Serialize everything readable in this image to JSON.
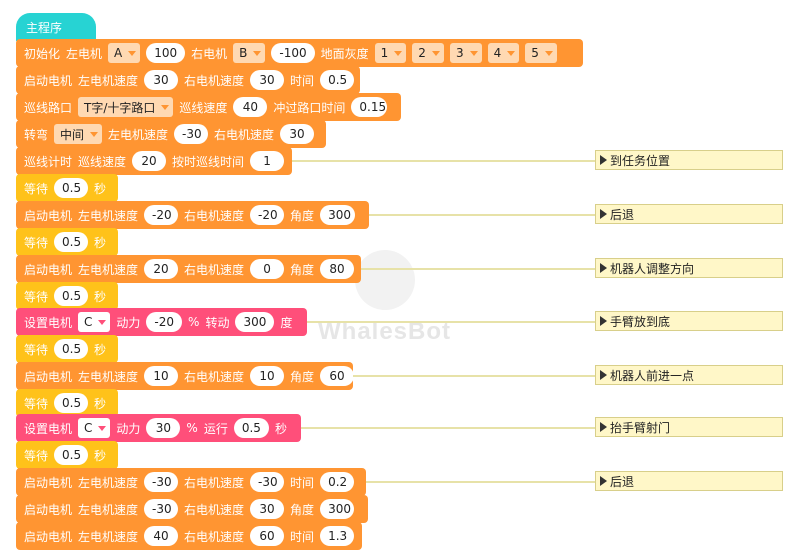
{
  "colors": {
    "hat": "#27d3d3",
    "motor": "#ff9532",
    "wait": "#ffc21a",
    "servo": "#ff4f7a",
    "comment_bg": "#fff7c8"
  },
  "watermark": "WhalesBot",
  "hat_label": "主程序",
  "init": {
    "label": "初始化",
    "left_label": "左电机",
    "left_port": "A",
    "left_value": "100",
    "right_label": "右电机",
    "right_port": "B",
    "right_value": "-100",
    "gray_label": "地面灰度",
    "sensors": [
      "1",
      "2",
      "3",
      "4",
      "5"
    ]
  },
  "start1": {
    "label": "启动电机",
    "l": "左电机速度",
    "lv": "30",
    "r": "右电机速度",
    "rv": "30",
    "t": "时间",
    "tv": "0.5"
  },
  "line_cross": {
    "label": "巡线路口",
    "type": "T字/十字路口",
    "speed_label": "巡线速度",
    "speed": "40",
    "pass_label": "冲过路口时间",
    "pass": "0.15"
  },
  "turn": {
    "label": "转弯",
    "mode": "中间",
    "l": "左电机速度",
    "lv": "-30",
    "r": "右电机速度",
    "rv": "30"
  },
  "line_timer": {
    "label": "巡线计时",
    "speed_label": "巡线速度",
    "speed": "20",
    "time_label": "按时巡线时间",
    "time": "1",
    "comment": "到任务位置"
  },
  "wait_label": "等待",
  "sec_label": "秒",
  "waits": [
    "0.5",
    "0.5",
    "0.5",
    "0.5",
    "0.5",
    "0.5"
  ],
  "move1": {
    "label": "启动电机",
    "l": "左电机速度",
    "lv": "-20",
    "r": "右电机速度",
    "rv": "-20",
    "a": "角度",
    "av": "300",
    "comment": "后退"
  },
  "move2": {
    "label": "启动电机",
    "l": "左电机速度",
    "lv": "20",
    "r": "右电机速度",
    "rv": "0",
    "a": "角度",
    "av": "80",
    "comment": "机器人调整方向"
  },
  "servo1": {
    "label": "设置电机",
    "port": "C",
    "power_label": "动力",
    "power": "-20",
    "pct": "%",
    "rot_label": "转动",
    "rot": "300",
    "unit": "度",
    "comment": "手臂放到底"
  },
  "move3": {
    "label": "启动电机",
    "l": "左电机速度",
    "lv": "10",
    "r": "右电机速度",
    "rv": "10",
    "a": "角度",
    "av": "60",
    "comment": "机器人前进一点"
  },
  "servo2": {
    "label": "设置电机",
    "port": "C",
    "power_label": "动力",
    "power": "30",
    "pct": "%",
    "run_label": "运行",
    "run": "0.5",
    "unit": "秒",
    "comment": "抬手臂射门"
  },
  "move4": {
    "label": "启动电机",
    "l": "左电机速度",
    "lv": "-30",
    "r": "右电机速度",
    "rv": "-30",
    "t": "时间",
    "tv": "0.2",
    "comment": "后退"
  },
  "move5": {
    "label": "启动电机",
    "l": "左电机速度",
    "lv": "-30",
    "r": "右电机速度",
    "rv": "30",
    "a": "角度",
    "av": "300"
  },
  "move6": {
    "label": "启动电机",
    "l": "左电机速度",
    "lv": "40",
    "r": "右电机速度",
    "rv": "60",
    "t": "时间",
    "tv": "1.3"
  }
}
